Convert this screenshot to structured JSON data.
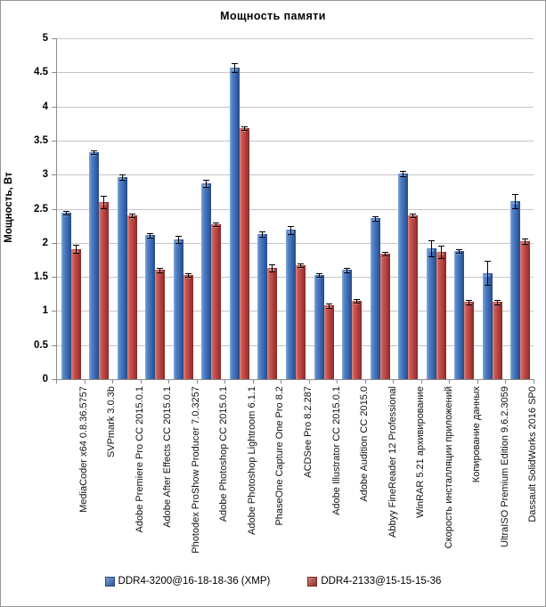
{
  "chart_data": {
    "type": "bar",
    "title": "Мощность памяти",
    "ylabel": "Мощность, Вт",
    "xlabel": "",
    "ylim": [
      0,
      5
    ],
    "ytick_step": 0.5,
    "grid": true,
    "legend_position": "bottom",
    "grid_color": "#c6c6c6",
    "axis_color": "#8c8c8c",
    "categories": [
      "MediaCoder x64 0.8.36.5757",
      "SVPmark 3.0.3b",
      "Adobe Premiere Pro CC 2015.0.1",
      "Adobe After Effects CC 2015.0.1",
      "Photodex ProShow Producer 7.0.3257",
      "Adobe Photoshop CC 2015.0.1",
      "Adobe Photoshop Lightroom 6.1.1",
      "PhaseOne Capture One Pro 8.2",
      "ACDSee Pro 8.2.287",
      "Adobe Illustrator CC 2015.0.1",
      "Adobe Audition CC 2015.0",
      "Abbyy FineReader 12 Professional",
      "WinRAR 5.21 архивирование",
      "Скорость инсталляции приложений",
      "Копирование данных",
      "UltraISO Premium Edition 9.6.2.3059",
      "Dassault SolidWorks 2016 SP0"
    ],
    "series": [
      {
        "name": "DDR4-3200@16-18-18-36 (XMP)",
        "color": "#3e6cb5",
        "values": [
          2.44,
          3.33,
          2.96,
          2.11,
          2.05,
          2.87,
          4.57,
          2.13,
          2.19,
          1.53,
          1.6,
          2.36,
          3.02,
          1.92,
          1.88,
          1.56,
          2.61
        ],
        "errors": [
          0.03,
          0.03,
          0.04,
          0.03,
          0.05,
          0.05,
          0.07,
          0.04,
          0.06,
          0.03,
          0.03,
          0.03,
          0.04,
          0.12,
          0.03,
          0.18,
          0.1
        ]
      },
      {
        "name": "DDR4-2133@15-15-15-36",
        "color": "#b8433f",
        "values": [
          1.91,
          2.6,
          2.4,
          1.6,
          1.53,
          2.27,
          3.68,
          1.63,
          1.67,
          1.08,
          1.15,
          1.84,
          2.4,
          1.87,
          1.13,
          1.13,
          2.02
        ],
        "errors": [
          0.06,
          0.09,
          0.03,
          0.03,
          0.03,
          0.03,
          0.03,
          0.05,
          0.03,
          0.03,
          0.03,
          0.03,
          0.03,
          0.09,
          0.03,
          0.03,
          0.04
        ]
      }
    ]
  }
}
